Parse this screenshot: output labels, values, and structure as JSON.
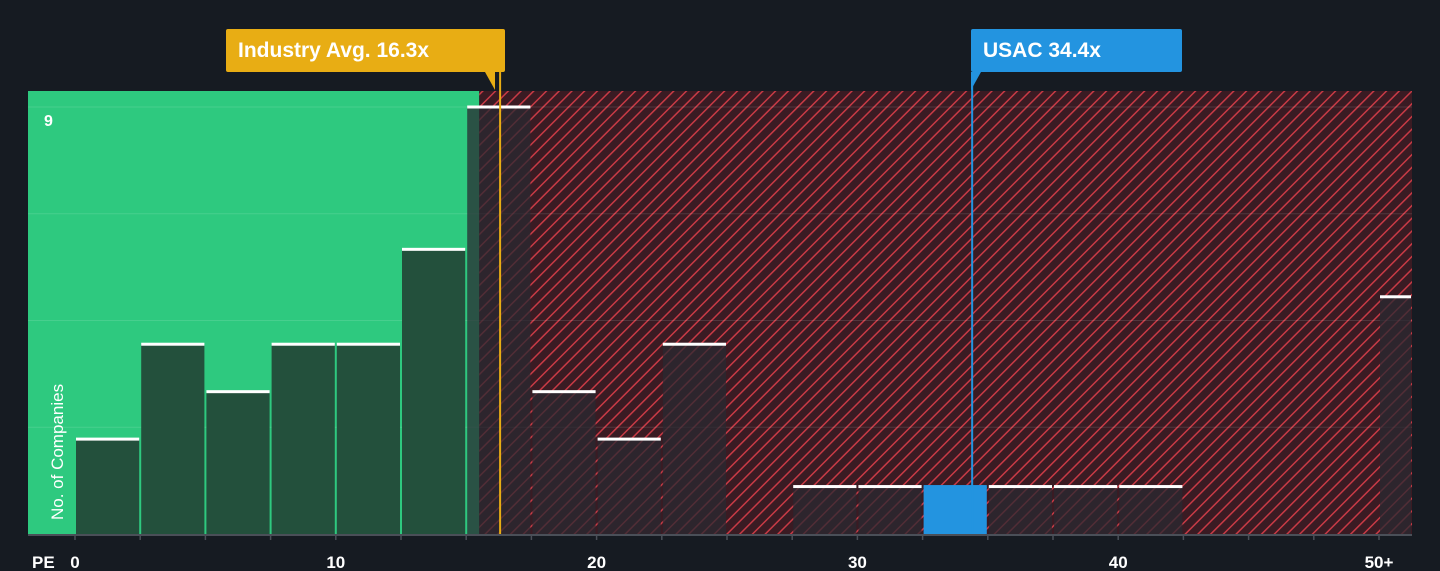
{
  "colors": {
    "background": "#161b22",
    "below_average_zone": "#2ec97f",
    "above_average_zone": "#3a1b23",
    "hatch": "#c83a45",
    "bar_fill": "#23503c",
    "bar_fill_dark": "#2a2a32",
    "bar_top": "#ffffff",
    "highlight": "#2394e0",
    "industry_line": "#e8ad14"
  },
  "chart_data": {
    "type": "bar",
    "xlabel": "PE",
    "ylabel": "No. of Companies",
    "x_ticks": [
      "0",
      "10",
      "20",
      "30",
      "40",
      "50+"
    ],
    "x_tick_values": [
      0,
      10,
      20,
      30,
      40,
      50
    ],
    "xlim": [
      -1.8,
      51.3
    ],
    "ylim": [
      0,
      9.3
    ],
    "y_tick_label": "9",
    "grid": "horizontal every 2.25",
    "bins": [
      {
        "x0": 0,
        "x1": 2.5,
        "count": 2
      },
      {
        "x0": 2.5,
        "x1": 5,
        "count": 4
      },
      {
        "x0": 5,
        "x1": 7.5,
        "count": 3
      },
      {
        "x0": 7.5,
        "x1": 10,
        "count": 4
      },
      {
        "x0": 10,
        "x1": 12.5,
        "count": 4
      },
      {
        "x0": 12.5,
        "x1": 15,
        "count": 6
      },
      {
        "x0": 15,
        "x1": 17.5,
        "count": 9
      },
      {
        "x0": 17.5,
        "x1": 20,
        "count": 3
      },
      {
        "x0": 20,
        "x1": 22.5,
        "count": 2
      },
      {
        "x0": 22.5,
        "x1": 25,
        "count": 4
      },
      {
        "x0": 27.5,
        "x1": 30,
        "count": 1
      },
      {
        "x0": 30,
        "x1": 32.5,
        "count": 1
      },
      {
        "x0": 32.5,
        "x1": 35,
        "count": 1,
        "highlight": true
      },
      {
        "x0": 35,
        "x1": 37.5,
        "count": 1
      },
      {
        "x0": 37.5,
        "x1": 40,
        "count": 1
      },
      {
        "x0": 40,
        "x1": 42.5,
        "count": 1
      },
      {
        "x0": 50,
        "x1": 51.3,
        "count": 5
      }
    ],
    "industry_average": 16.3,
    "company_value": 34.4
  },
  "callouts": {
    "industry": "Industry Avg. 16.3x",
    "company": "USAC 34.4x"
  }
}
